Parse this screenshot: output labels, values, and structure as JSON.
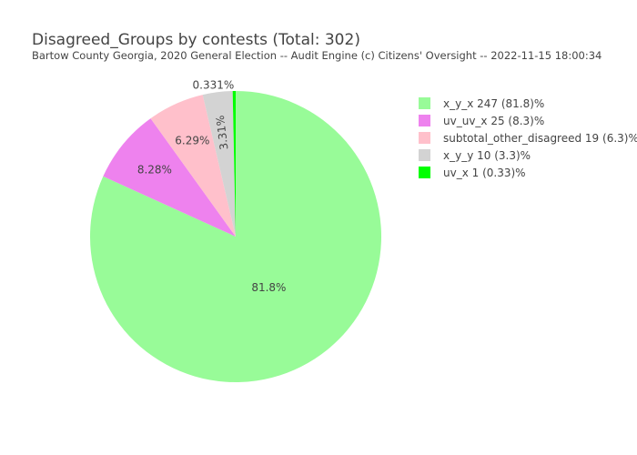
{
  "chart_data": {
    "type": "pie",
    "title": "Disagreed_Groups by contests (Total: 302)",
    "subtitle": "Bartow County Georgia, 2020 General Election -- Audit Engine (c) Citizens' Oversight -- 2022-11-15 18:00:34",
    "total": 302,
    "legend_placement": "right",
    "slices": [
      {
        "name": "x_y_x",
        "value": 247,
        "legend": "x_y_x 247 (81.8)%",
        "label": "81.8%",
        "color": "#98fb98",
        "label_position": "inside"
      },
      {
        "name": "uv_uv_x",
        "value": 25,
        "legend": "uv_uv_x 25 (8.3)%",
        "label": "8.28%",
        "color": "#ee82ee",
        "label_position": "inside"
      },
      {
        "name": "subtotal_other_disagreed",
        "value": 19,
        "legend": "subtotal_other_disagreed 19 (6.3)%",
        "label": "6.29%",
        "color": "#ffc0cb",
        "label_position": "inside"
      },
      {
        "name": "x_y_y",
        "value": 10,
        "legend": "x_y_y 10 (3.3)%",
        "label": "3.31%",
        "color": "#d3d3d3",
        "label_position": "inside"
      },
      {
        "name": "uv_x",
        "value": 1,
        "legend": "uv_x 1 (0.33)%",
        "label": "0.331%",
        "color": "#00ff00",
        "label_position": "outside"
      }
    ]
  }
}
